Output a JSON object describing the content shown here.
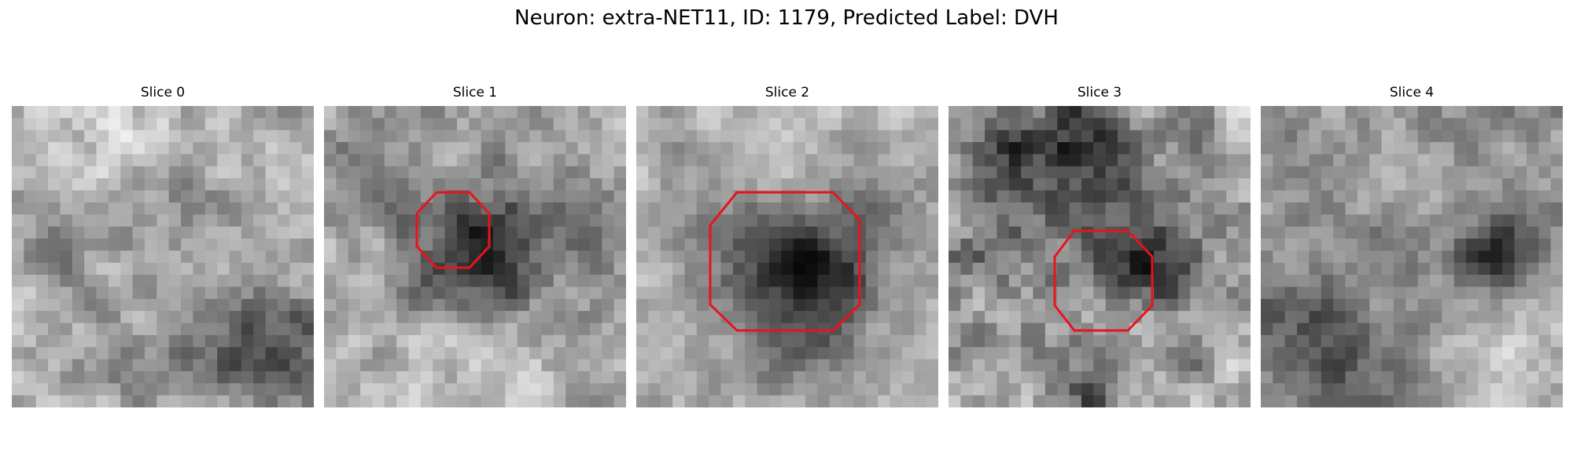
{
  "figure": {
    "title": "Neuron: extra-NET11, ID: 1179, Predicted Label: DVH"
  },
  "colors": {
    "background": "#ffffff",
    "roi_outline": "#e8141b",
    "colormap": "gray"
  },
  "slices": [
    {
      "label": "Slice 0",
      "has_roi": false
    },
    {
      "label": "Slice 1",
      "has_roi": true
    },
    {
      "label": "Slice 2",
      "has_roi": true
    },
    {
      "label": "Slice 3",
      "has_roi": true
    },
    {
      "label": "Slice 4",
      "has_roi": false
    }
  ]
}
